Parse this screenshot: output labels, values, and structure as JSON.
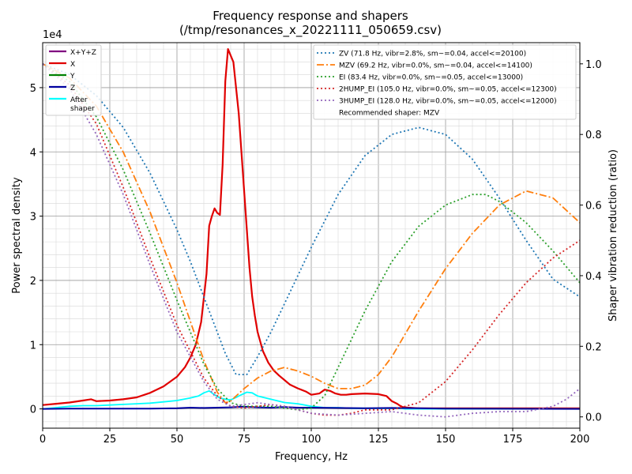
{
  "chart_data": {
    "type": "line",
    "title": "Frequency response and shapers",
    "subtitle": "(/tmp/resonances_x_20221111_050659.csv)",
    "xlabel": "Frequency, Hz",
    "ylabel": "Power spectral density",
    "ylabel_right": "Shaper vibration reduction (ratio)",
    "y_multiplier": "1e4",
    "xlim": [
      0,
      200
    ],
    "ylim": [
      -0.3,
      5.7
    ],
    "ylim_right": [
      -0.032,
      1.06
    ],
    "x_ticks": [
      0,
      25,
      50,
      75,
      100,
      125,
      150,
      175,
      200
    ],
    "x_tick_labels": [
      "0",
      "25",
      "50",
      "75",
      "100",
      "125",
      "150",
      "175",
      "200"
    ],
    "y_ticks": [
      0,
      1,
      2,
      3,
      4,
      5
    ],
    "y_tick_labels": [
      "0",
      "1",
      "2",
      "3",
      "4",
      "5"
    ],
    "y_right_ticks": [
      0,
      0.2,
      0.4,
      0.6,
      0.8,
      1.0
    ],
    "y_right_tick_labels": [
      "0.0",
      "0.2",
      "0.4",
      "0.6",
      "0.8",
      "1.0"
    ],
    "grid": true,
    "legend_left": [
      {
        "label": "X+Y+Z",
        "color": "#800080"
      },
      {
        "label": "X",
        "color": "#e00000"
      },
      {
        "label": "Y",
        "color": "#008000"
      },
      {
        "label": "Z",
        "color": "#0000a0"
      },
      {
        "label": "After",
        "label2": "shaper",
        "color": "#00ffff"
      }
    ],
    "legend_right": [
      {
        "label": "ZV (71.8 Hz, vibr=2.8%, sm~=0.04, accel<=20100)",
        "color": "#1f77b4",
        "dash": "2,3"
      },
      {
        "label": "MZV (69.2 Hz, vibr=0.0%, sm~=0.04, accel<=14100)",
        "color": "#ff7f0e",
        "dash": "9,3,2,3"
      },
      {
        "label": "EI (83.4 Hz, vibr=0.0%, sm~=0.05, accel<=13000)",
        "color": "#2ca02c",
        "dash": "2,3"
      },
      {
        "label": "2HUMP_EI (105.0 Hz, vibr=0.0%, sm~=0.05, accel<=12300)",
        "color": "#d62728",
        "dash": "2,3"
      },
      {
        "label": "3HUMP_EI (128.0 Hz, vibr=0.0%, sm~=0.05, accel<=12000)",
        "color": "#9467bd",
        "dash": "2,3"
      },
      {
        "label": "Recommended shaper: MZV"
      }
    ],
    "series": [
      {
        "name": "X",
        "color": "#e00000",
        "width": 2.2,
        "x": [
          0,
          5,
          10,
          15,
          18,
          20,
          25,
          30,
          35,
          40,
          45,
          50,
          53,
          55,
          57,
          59,
          61,
          62,
          63,
          64,
          65,
          66,
          67,
          68,
          69,
          70,
          71,
          72,
          73,
          74,
          75,
          76,
          77,
          78,
          79,
          80,
          82,
          84,
          86,
          88,
          90,
          92,
          95,
          98,
          100,
          103,
          105,
          107,
          109,
          111,
          113,
          115,
          120,
          125,
          128,
          130,
          132,
          133,
          134,
          136,
          140,
          150,
          160,
          170,
          180,
          190,
          200
        ],
        "y": [
          0.06,
          0.08,
          0.1,
          0.13,
          0.15,
          0.12,
          0.13,
          0.15,
          0.18,
          0.25,
          0.35,
          0.5,
          0.65,
          0.8,
          1.0,
          1.35,
          2.1,
          2.85,
          3.0,
          3.12,
          3.05,
          3.02,
          3.8,
          5.1,
          5.6,
          5.5,
          5.4,
          5.0,
          4.6,
          4.0,
          3.4,
          2.8,
          2.2,
          1.75,
          1.45,
          1.2,
          0.9,
          0.72,
          0.6,
          0.52,
          0.45,
          0.38,
          0.32,
          0.27,
          0.22,
          0.24,
          0.3,
          0.28,
          0.24,
          0.22,
          0.22,
          0.23,
          0.24,
          0.23,
          0.2,
          0.12,
          0.08,
          0.05,
          0.03,
          0.02,
          0.01,
          0.01,
          0.01,
          0.01,
          0.01,
          0.01,
          0.01
        ]
      },
      {
        "name": "After shaper",
        "color": "#00ffff",
        "width": 1.8,
        "x": [
          0,
          5,
          10,
          15,
          20,
          25,
          30,
          35,
          40,
          45,
          50,
          55,
          58,
          60,
          62,
          64,
          66,
          68,
          70,
          72,
          74,
          76,
          78,
          80,
          85,
          90,
          95,
          100,
          105,
          110,
          115,
          120,
          125,
          130,
          133,
          135,
          140,
          150,
          160,
          170,
          180,
          190,
          200
        ],
        "y": [
          0.0,
          0.02,
          0.04,
          0.05,
          0.05,
          0.06,
          0.07,
          0.08,
          0.09,
          0.11,
          0.13,
          0.17,
          0.2,
          0.25,
          0.28,
          0.22,
          0.17,
          0.15,
          0.14,
          0.18,
          0.22,
          0.26,
          0.25,
          0.2,
          0.15,
          0.1,
          0.08,
          0.04,
          0.02,
          0.02,
          0.01,
          0.01,
          0.01,
          0.01,
          0.01,
          0.0,
          0.0,
          0.0,
          0.0,
          0.0,
          0.0,
          0.0,
          0.0
        ]
      },
      {
        "name": "Z",
        "color": "#0000a0",
        "width": 2.0,
        "x": [
          0,
          10,
          20,
          30,
          40,
          50,
          55,
          60,
          65,
          70,
          75,
          80,
          85,
          90,
          95,
          100,
          110,
          120,
          130,
          140,
          150,
          200
        ],
        "y": [
          0.0,
          0.005,
          0.005,
          0.005,
          0.005,
          0.01,
          0.02,
          0.015,
          0.02,
          0.025,
          0.035,
          0.025,
          0.02,
          0.03,
          0.02,
          0.02,
          0.015,
          0.01,
          0.015,
          0.01,
          0.005,
          0.0
        ]
      },
      {
        "name": "ZV (71.8 Hz, vibr=2.8%, sm~=0.04, accel<=20100)",
        "color": "#1f77b4",
        "dash": "2,3",
        "axis": "right",
        "width": 1.8,
        "x": [
          0,
          10,
          20,
          30,
          40,
          50,
          55,
          60,
          65,
          68,
          72,
          76,
          80,
          85,
          90,
          100,
          110,
          120,
          130,
          140,
          150,
          160,
          170,
          180,
          190,
          200
        ],
        "y": [
          1.0,
          0.97,
          0.91,
          0.82,
          0.69,
          0.53,
          0.44,
          0.34,
          0.24,
          0.18,
          0.12,
          0.12,
          0.17,
          0.24,
          0.32,
          0.48,
          0.63,
          0.74,
          0.8,
          0.82,
          0.8,
          0.73,
          0.62,
          0.5,
          0.39,
          0.34
        ]
      },
      {
        "name": "MZV (69.2 Hz, vibr=0.0%, sm~=0.04, accel<=14100)",
        "color": "#ff7f0e",
        "dash": "9,3,2,3",
        "axis": "right",
        "width": 1.8,
        "x": [
          0,
          10,
          20,
          30,
          40,
          50,
          55,
          60,
          65,
          68,
          70,
          75,
          80,
          85,
          90,
          95,
          100,
          105,
          110,
          115,
          120,
          125,
          130,
          140,
          150,
          160,
          170,
          180,
          190,
          200
        ],
        "y": [
          1.0,
          0.96,
          0.88,
          0.75,
          0.58,
          0.38,
          0.27,
          0.16,
          0.07,
          0.04,
          0.045,
          0.08,
          0.11,
          0.13,
          0.14,
          0.13,
          0.115,
          0.095,
          0.08,
          0.08,
          0.09,
          0.12,
          0.17,
          0.3,
          0.42,
          0.52,
          0.6,
          0.64,
          0.62,
          0.55
        ]
      },
      {
        "name": "EI (83.4 Hz, vibr=0.0%, sm~=0.05, accel<=13000)",
        "color": "#2ca02c",
        "dash": "2,3",
        "axis": "right",
        "width": 1.8,
        "x": [
          0,
          10,
          20,
          30,
          40,
          50,
          55,
          60,
          65,
          70,
          75,
          80,
          85,
          90,
          95,
          100,
          105,
          110,
          120,
          130,
          140,
          150,
          160,
          165,
          170,
          180,
          190,
          200
        ],
        "y": [
          1.0,
          0.95,
          0.85,
          0.7,
          0.52,
          0.33,
          0.24,
          0.15,
          0.08,
          0.04,
          0.03,
          0.03,
          0.03,
          0.025,
          0.02,
          0.025,
          0.06,
          0.14,
          0.3,
          0.44,
          0.54,
          0.6,
          0.63,
          0.63,
          0.61,
          0.55,
          0.47,
          0.38
        ]
      },
      {
        "name": "2HUMP_EI (105.0 Hz, vibr=0.0%, sm~=0.05, accel<=12300)",
        "color": "#d62728",
        "dash": "2,3",
        "axis": "right",
        "width": 1.8,
        "x": [
          0,
          10,
          20,
          30,
          40,
          50,
          60,
          65,
          70,
          75,
          80,
          85,
          90,
          95,
          100,
          105,
          110,
          115,
          120,
          125,
          130,
          140,
          150,
          160,
          170,
          180,
          190,
          200
        ],
        "y": [
          1.0,
          0.94,
          0.83,
          0.65,
          0.45,
          0.26,
          0.11,
          0.06,
          0.03,
          0.025,
          0.03,
          0.035,
          0.03,
          0.02,
          0.01,
          0.005,
          0.005,
          0.01,
          0.02,
          0.02,
          0.02,
          0.04,
          0.1,
          0.19,
          0.29,
          0.38,
          0.45,
          0.5
        ]
      },
      {
        "name": "3HUMP_EI (128.0 Hz, vibr=0.0%, sm~=0.05, accel<=12000)",
        "color": "#9467bd",
        "dash": "2,3",
        "axis": "right",
        "width": 1.8,
        "x": [
          0,
          10,
          20,
          30,
          40,
          50,
          60,
          65,
          70,
          75,
          80,
          85,
          90,
          100,
          110,
          120,
          130,
          140,
          150,
          160,
          170,
          180,
          190,
          195,
          200
        ],
        "y": [
          1.0,
          0.93,
          0.8,
          0.63,
          0.43,
          0.24,
          0.1,
          0.05,
          0.03,
          0.035,
          0.04,
          0.035,
          0.03,
          0.01,
          0.005,
          0.01,
          0.015,
          0.005,
          0.0,
          0.01,
          0.015,
          0.015,
          0.03,
          0.05,
          0.08
        ]
      }
    ]
  }
}
